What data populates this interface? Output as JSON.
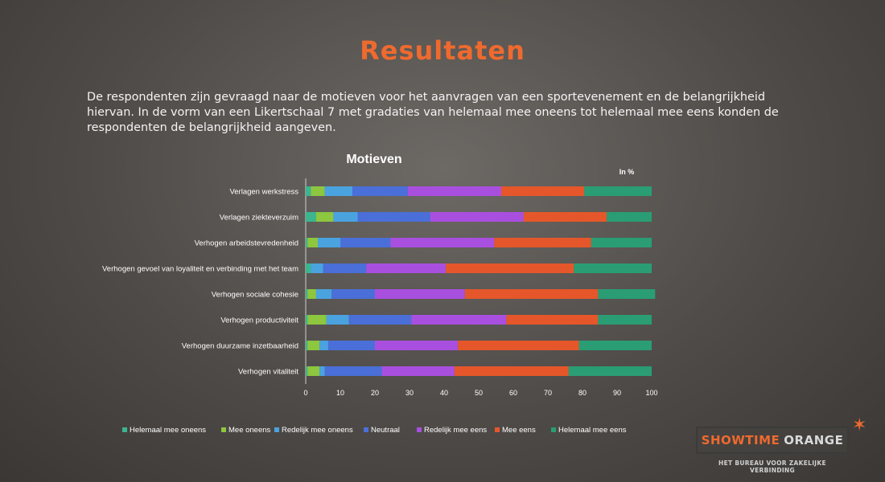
{
  "page": {
    "title": "Resultaten",
    "intro": "De respondenten zijn gevraagd naar de motieven voor het aanvragen van een sportevenement en de belangrijkheid hiervan. In de vorm van een Likertschaal 7 met gradaties van helemaal mee oneens tot helemaal mee eens konden de respondenten de belangrijkheid aangeven."
  },
  "chart_data": {
    "type": "bar",
    "orientation": "horizontal",
    "stacked": true,
    "title": "Motieven",
    "unit_label": "In %",
    "xlim": [
      0,
      100
    ],
    "xticks": [
      "0",
      "10",
      "20",
      "30",
      "40",
      "50",
      "60",
      "70",
      "80",
      "90",
      "100"
    ],
    "legend_position": "bottom",
    "categories": [
      "Verlagen werkstress",
      "Verlagen ziekteverzuim",
      "Verhogen arbeidstevredenheid",
      "Verhogen gevoel van loyaliteit en verbinding met het team",
      "Verhogen sociale cohesie",
      "Verhogen productiviteit",
      "Verhogen duurzame inzetbaarheid",
      "Verhogen vitaliteit"
    ],
    "series": [
      {
        "name": "Helemaal mee oneens",
        "color": "#3cb58f",
        "values": [
          1.5,
          3,
          0.5,
          1.5,
          0.5,
          0.5,
          0.5,
          0.5
        ]
      },
      {
        "name": "Mee oneens",
        "color": "#8dc63f",
        "values": [
          4,
          5,
          3,
          0,
          2.5,
          5.5,
          3.5,
          3.5
        ]
      },
      {
        "name": "Redelijk mee oneens",
        "color": "#4aa3df",
        "values": [
          8,
          7,
          6.5,
          3.5,
          4.5,
          6.5,
          2.5,
          1.5
        ]
      },
      {
        "name": "Neutraal",
        "color": "#4a6fd8",
        "values": [
          16,
          21,
          14.5,
          12.5,
          12.5,
          18,
          13.5,
          16.5
        ]
      },
      {
        "name": "Redelijk mee eens",
        "color": "#a94fe0",
        "values": [
          27,
          27,
          30,
          23,
          26,
          27.5,
          24,
          21
        ]
      },
      {
        "name": "Mee eens",
        "color": "#e5572a",
        "values": [
          24,
          24,
          28,
          37,
          38.5,
          26.5,
          35,
          33
        ]
      },
      {
        "name": "Helemaal mee eens",
        "color": "#2a9d74",
        "values": [
          19.5,
          13,
          17.5,
          22.5,
          16.5,
          15.5,
          21,
          24
        ]
      }
    ]
  },
  "logo": {
    "brand_part1": "SHOWTIME",
    "brand_part2": "ORANGE",
    "tagline": "HET BUREAU VOOR ZAKELIJKE VERBINDING",
    "accent_color": "#ee6a2f"
  }
}
